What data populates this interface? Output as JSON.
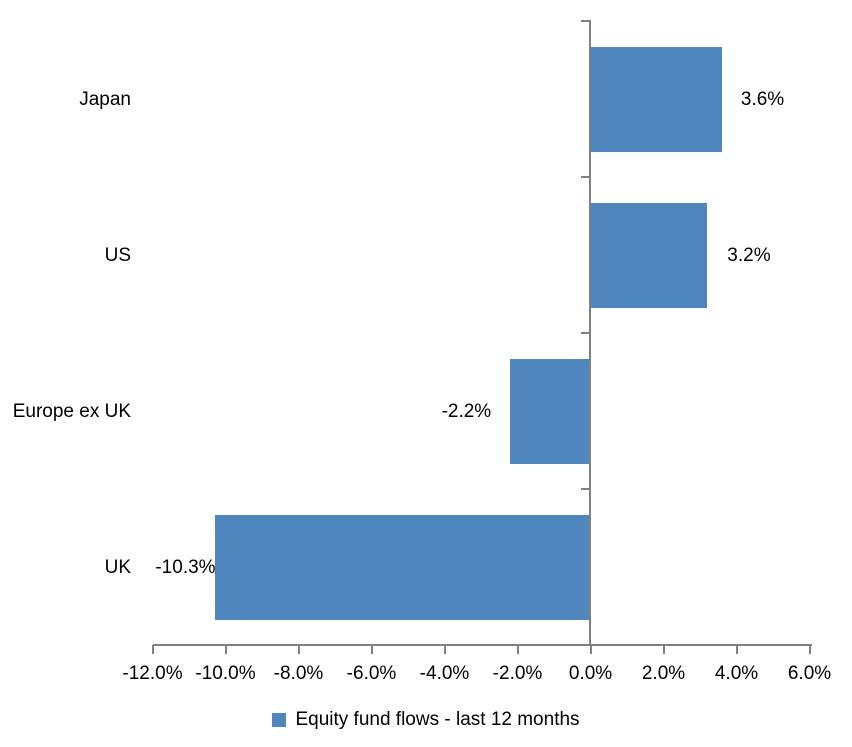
{
  "chart_data": {
    "type": "bar",
    "orientation": "horizontal",
    "title": "",
    "categories": [
      "Japan",
      "US",
      "Europe ex UK",
      "UK"
    ],
    "values": [
      3.6,
      3.2,
      -2.2,
      -10.3
    ],
    "value_labels": [
      "3.6%",
      "3.2%",
      "-2.2%",
      "-10.3%"
    ],
    "series": [
      {
        "name": "Equity fund flows - last 12 months",
        "values": [
          3.6,
          3.2,
          -2.2,
          -10.3
        ]
      }
    ],
    "x_tick_labels": [
      "-12.0%",
      "-10.0%",
      "-8.0%",
      "-6.0%",
      "-4.0%",
      "-2.0%",
      "0.0%",
      "2.0%",
      "4.0%",
      "6.0%"
    ],
    "x_tick_values": [
      -12,
      -10,
      -8,
      -6,
      -4,
      -2,
      0,
      2,
      4,
      6
    ],
    "xlim": [
      -12,
      6
    ],
    "grid": false,
    "legend": {
      "label": "Equity fund flows - last 12 months",
      "position": "bottom"
    },
    "colors": {
      "bar": "#4E86BD",
      "axis": "#808080",
      "text": "#000000",
      "background": "#FFFFFF"
    }
  }
}
